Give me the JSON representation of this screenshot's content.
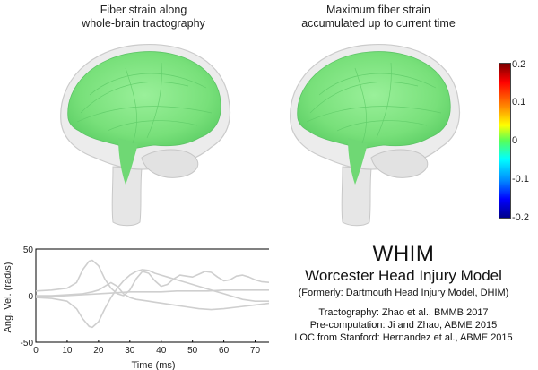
{
  "panels": {
    "left_title_line1": "Fiber strain along",
    "left_title_line2": "whole-brain tractography",
    "right_title_line1": "Maximum fiber strain",
    "right_title_line2": "accumulated up to current time"
  },
  "colorbar": {
    "ticks": [
      "0.2",
      "0.1",
      "0",
      "-0.1",
      "-0.2"
    ],
    "colormap": "jet",
    "fiber_color": "#7ee37a"
  },
  "chart_data": {
    "type": "line",
    "xlabel": "Time (ms)",
    "ylabel": "Ang. Vel. (rad/s)",
    "xlim": [
      0,
      75
    ],
    "ylim": [
      -50,
      50
    ],
    "xticks": [
      "0",
      "10",
      "20",
      "30",
      "40",
      "50",
      "60",
      "70"
    ],
    "yticks": [
      "50",
      "0",
      "-50"
    ],
    "series": [
      {
        "x": [
          0,
          5,
          10,
          13,
          15,
          17,
          18,
          20,
          22,
          24,
          26,
          28,
          30,
          32,
          34,
          36,
          38,
          40,
          42,
          44,
          46,
          48,
          50,
          52,
          54,
          56,
          58,
          60,
          62,
          64,
          66,
          68,
          70,
          72,
          75
        ],
        "y": [
          5,
          6,
          8,
          14,
          28,
          37,
          38,
          32,
          18,
          8,
          2,
          0,
          6,
          18,
          26,
          24,
          16,
          10,
          12,
          18,
          22,
          21,
          20,
          23,
          26,
          25,
          20,
          16,
          17,
          21,
          22,
          20,
          17,
          15,
          14
        ]
      },
      {
        "x": [
          0,
          5,
          10,
          13,
          15,
          17,
          18,
          20,
          22,
          24,
          26,
          28,
          30,
          32,
          34,
          36,
          38,
          40,
          42,
          44,
          46,
          48,
          50,
          52,
          54,
          56,
          58,
          60,
          62,
          64,
          66,
          68,
          70,
          72,
          75
        ],
        "y": [
          -2,
          -3,
          -6,
          -14,
          -25,
          -33,
          -34,
          -28,
          -14,
          -2,
          8,
          16,
          22,
          26,
          28,
          27,
          24,
          22,
          20,
          18,
          16,
          14,
          12,
          10,
          8,
          6,
          4,
          2,
          0,
          -2,
          -4,
          -5,
          -6,
          -6,
          -6
        ]
      },
      {
        "x": [
          0,
          5,
          10,
          15,
          18,
          20,
          22,
          24,
          26,
          28,
          30,
          32,
          34,
          36,
          38,
          40,
          44,
          48,
          52,
          56,
          60,
          65,
          70,
          75
        ],
        "y": [
          0,
          0,
          1,
          2,
          4,
          6,
          10,
          14,
          10,
          2,
          -2,
          -4,
          -5,
          -6,
          -7,
          -8,
          -10,
          -12,
          -14,
          -15,
          -14,
          -12,
          -10,
          -8
        ]
      },
      {
        "x": [
          0,
          5,
          10,
          15,
          20,
          25,
          30,
          35,
          40,
          45,
          50,
          55,
          60,
          65,
          70,
          75
        ],
        "y": [
          -1,
          -1,
          0,
          1,
          2,
          3,
          4,
          4,
          4,
          5,
          5,
          5,
          6,
          6,
          6,
          6
        ]
      }
    ]
  },
  "info": {
    "acronym": "WHIM",
    "full_name": "Worcester Head Injury Model",
    "formerly": "(Formerly: Dartmouth Head Injury Model, DHIM)",
    "credit_tractography": "Tractography: Zhao et al., BMMB 2017",
    "credit_precomputation": "Pre-computation: Ji and Zhao, ABME 2015",
    "credit_loc": "LOC from Stanford: Hernandez et al., ABME 2015"
  }
}
